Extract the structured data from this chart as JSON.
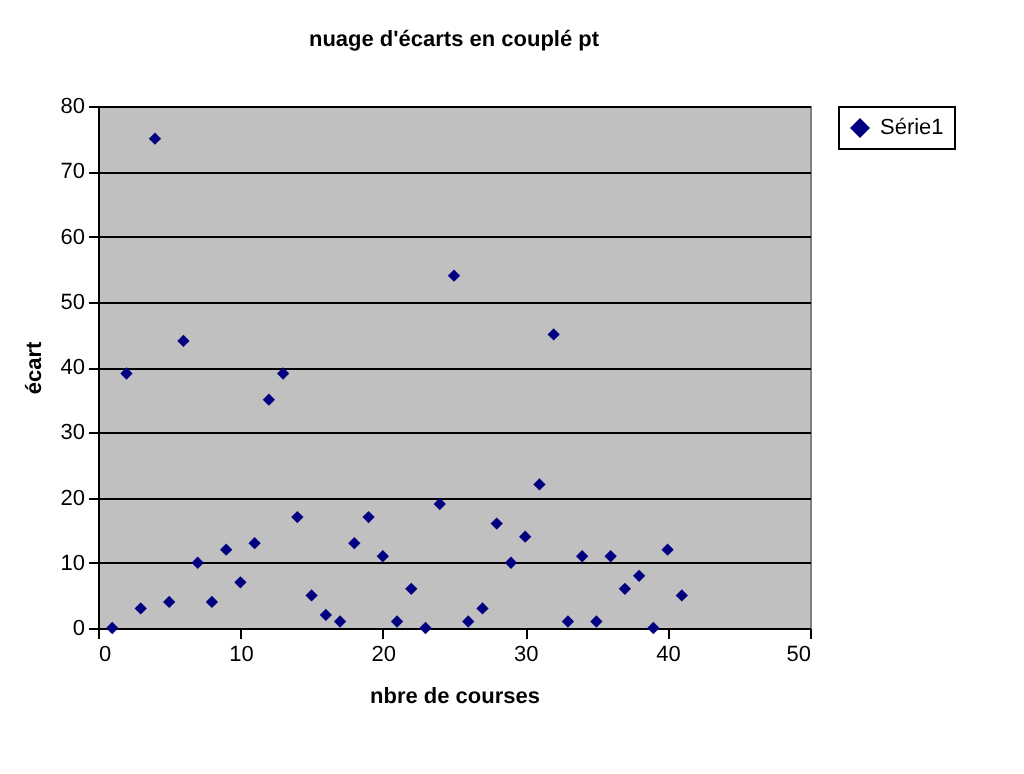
{
  "chart_data": {
    "type": "scatter",
    "title": "nuage d'écarts en couplé pt",
    "xlabel": "nbre de courses",
    "ylabel": "écart",
    "x": [
      1,
      2,
      3,
      4,
      5,
      6,
      7,
      8,
      9,
      10,
      11,
      12,
      13,
      14,
      15,
      16,
      17,
      18,
      19,
      20,
      21,
      22,
      23,
      24,
      25,
      26,
      27,
      28,
      29,
      30,
      31,
      32,
      33,
      34,
      35,
      36,
      37,
      38,
      39,
      40,
      41
    ],
    "series": [
      {
        "name": "Série1",
        "color": "#000080",
        "values": [
          0,
          39,
          3,
          75,
          4,
          44,
          10,
          4,
          12,
          7,
          13,
          35,
          39,
          17,
          5,
          2,
          1,
          13,
          17,
          11,
          1,
          6,
          0,
          19,
          54,
          1,
          3,
          16,
          10,
          14,
          22,
          45,
          1,
          11,
          1,
          11,
          6,
          8,
          0,
          12,
          5
        ]
      }
    ],
    "xlim": [
      0,
      50
    ],
    "xticks": [
      0,
      10,
      20,
      30,
      40,
      50
    ],
    "ylim": [
      0,
      80
    ],
    "yticks": [
      0,
      10,
      20,
      30,
      40,
      50,
      60,
      70,
      80
    ],
    "grid": "y",
    "legend": "right",
    "marker": "diamond"
  }
}
